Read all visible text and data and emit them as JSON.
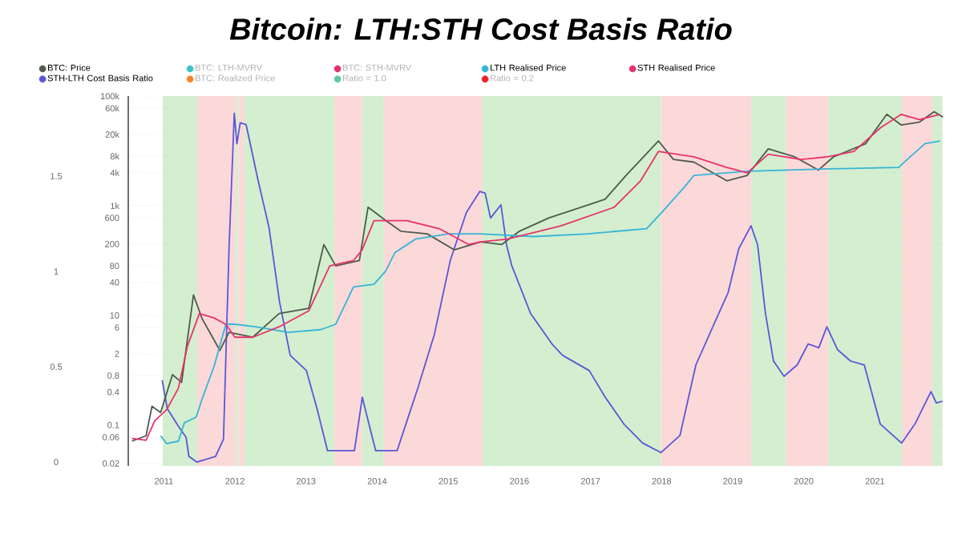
{
  "chart_data": {
    "type": "line",
    "title": "Bitcoin: LTH:STH Cost Basis Ratio",
    "xlim": [
      "2010-07-01",
      "2021-12-31"
    ],
    "xticks": [
      "2011",
      "2012",
      "2013",
      "2014",
      "2015",
      "2016",
      "2017",
      "2018",
      "2019",
      "2020",
      "2021"
    ],
    "ylim": [
      -0.02,
      1.92
    ],
    "yticks": [
      0,
      0.5,
      1,
      1.5
    ],
    "y2lim": [
      0.018,
      100000
    ],
    "y2ticks": [
      0.02,
      0.06,
      0.1,
      0.4,
      0.8,
      2,
      6,
      10,
      40,
      80,
      200,
      600,
      {
        "value": 1000,
        "label": "1k"
      },
      {
        "value": 4000,
        "label": "4k"
      },
      {
        "value": 8000,
        "label": "8k"
      },
      {
        "value": 20000,
        "label": "20k"
      },
      {
        "value": 60000,
        "label": "60k"
      },
      {
        "value": 100000,
        "label": "100k"
      }
    ],
    "log": "y2",
    "grid": "y",
    "legend": "top",
    "bands": [
      {
        "axis": "x",
        "from": "2010-12-25",
        "to": "2011-06-20",
        "color": "#d3efcf"
      },
      {
        "axis": "x",
        "from": "2011-06-20",
        "to": "2012-01-04",
        "color": "#fcd9d9"
      },
      {
        "axis": "x",
        "from": "2012-01-04",
        "to": "2012-01-18",
        "color": "#d3efcf"
      },
      {
        "axis": "x",
        "from": "2012-01-18",
        "to": "2012-02-20",
        "color": "#fcd9d9"
      },
      {
        "axis": "x",
        "from": "2012-02-20",
        "to": "2013-05-25",
        "color": "#d3efcf"
      },
      {
        "axis": "x",
        "from": "2013-05-25",
        "to": "2013-10-15",
        "color": "#fcd9d9"
      },
      {
        "axis": "x",
        "from": "2013-10-15",
        "to": "2014-02-05",
        "color": "#d3efcf"
      },
      {
        "axis": "x",
        "from": "2014-02-05",
        "to": "2015-06-25",
        "color": "#fcd9d9"
      },
      {
        "axis": "x",
        "from": "2015-06-25",
        "to": "2017-12-28",
        "color": "#d3efcf"
      },
      {
        "axis": "x",
        "from": "2017-12-28",
        "to": "2019-04-05",
        "color": "#fcd9d9"
      },
      {
        "axis": "x",
        "from": "2019-04-05",
        "to": "2019-10-01",
        "color": "#d3efcf"
      },
      {
        "axis": "x",
        "from": "2019-10-01",
        "to": "2020-05-05",
        "color": "#fcd9d9"
      },
      {
        "axis": "x",
        "from": "2020-05-05",
        "to": "2021-05-18",
        "color": "#d3efcf"
      },
      {
        "axis": "x",
        "from": "2021-05-18",
        "to": "2021-10-22",
        "color": "#fcd9d9"
      },
      {
        "axis": "x",
        "from": "2021-10-22",
        "to": "2021-12-13",
        "color": "#d3efcf"
      }
    ],
    "series": [
      {
        "name": "BTC: Price",
        "color": "#4f5a4c",
        "axis": "y2",
        "x": [
          "2010-07-20",
          "2010-10-01",
          "2010-11-01",
          "2010-12-15",
          "2011-02-15",
          "2011-04-01",
          "2011-06-01",
          "2011-07-15",
          "2011-10-15",
          "2011-12-01",
          "2012-04-01",
          "2012-08-15",
          "2013-01-15",
          "2013-04-01",
          "2013-06-01",
          "2013-10-01",
          "2013-11-15",
          "2014-02-15",
          "2014-05-01",
          "2014-09-15",
          "2015-02-01",
          "2015-06-15",
          "2015-10-01",
          "2016-01-01",
          "2016-06-01",
          "2017-03-15",
          "2017-07-01",
          "2017-12-15",
          "2018-03-01",
          "2018-06-15",
          "2018-12-01",
          "2019-03-15",
          "2019-07-01",
          "2019-11-15",
          "2020-03-15",
          "2020-06-01",
          "2020-11-15",
          "2021-03-01",
          "2021-05-15",
          "2021-08-15",
          "2021-11-01",
          "2021-12-15"
        ],
        "values": [
          0.051,
          0.064,
          0.22,
          0.17,
          0.83,
          0.6,
          23.7,
          8.7,
          2.3,
          4.9,
          4.0,
          10.8,
          13.5,
          196,
          80,
          100,
          940,
          535,
          343,
          307,
          157,
          220,
          196,
          343,
          600,
          1310,
          3580,
          15200,
          6980,
          6240,
          2850,
          3580,
          10900,
          7780,
          4470,
          7780,
          13600,
          46500,
          29600,
          33300,
          52100,
          41500
        ]
      },
      {
        "name": "BTC: LTH-MVRV",
        "color": "#3cc3c8",
        "axis": "y2"
      },
      {
        "name": "BTC: STH-MVRV",
        "color": "#e0306a",
        "axis": "y2"
      },
      {
        "name": "LTH Realised Price",
        "color": "#36b4d8",
        "axis": "y2",
        "x": [
          "2010-12-15",
          "2011-01-15",
          "2011-03-15",
          "2011-04-15",
          "2011-06-15",
          "2011-07-15",
          "2011-09-15",
          "2011-11-15",
          "2012-01-01",
          "2012-04-15",
          "2012-10-01",
          "2013-03-15",
          "2013-06-01",
          "2013-09-01",
          "2013-12-15",
          "2014-02-15",
          "2014-04-01",
          "2014-07-15",
          "2015-01-01",
          "2015-06-15",
          "2016-03-15",
          "2016-12-15",
          "2017-10-15",
          "2018-01-01",
          "2018-05-01",
          "2018-06-15",
          "2019-03-15",
          "2020-04-01",
          "2021-05-01",
          "2021-06-15",
          "2021-09-15",
          "2021-12-01"
        ],
        "values": [
          0.064,
          0.046,
          0.051,
          0.11,
          0.14,
          0.3,
          1.16,
          6.9,
          6.9,
          6.2,
          4.9,
          5.5,
          6.9,
          33,
          37,
          65,
          140,
          246,
          307,
          307,
          274,
          307,
          383,
          748,
          2290,
          3580,
          4270,
          4680,
          5000,
          6980,
          13600,
          15200
        ]
      },
      {
        "name": "STH Realised Price",
        "color": "#e8336b",
        "axis": "y2",
        "x": [
          "2010-07-20",
          "2010-10-01",
          "2010-11-15",
          "2011-01-15",
          "2011-03-15",
          "2011-05-01",
          "2011-07-01",
          "2011-09-15",
          "2011-11-15",
          "2012-01-01",
          "2012-04-01",
          "2012-08-15",
          "2013-01-15",
          "2013-05-01",
          "2013-09-01",
          "2013-10-15",
          "2013-12-15",
          "2014-06-01",
          "2014-11-15",
          "2015-04-15",
          "2015-06-15",
          "2015-11-01",
          "2016-08-01",
          "2017-05-01",
          "2017-09-15",
          "2017-12-15",
          "2018-06-15",
          "2018-12-01",
          "2019-03-15",
          "2019-07-01",
          "2019-12-15",
          "2020-05-01",
          "2020-09-15",
          "2021-02-01",
          "2021-05-15",
          "2021-08-15",
          "2021-12-01"
        ],
        "values": [
          0.057,
          0.053,
          0.12,
          0.19,
          0.47,
          2.8,
          10.8,
          9.0,
          6.9,
          4.0,
          4.0,
          6.2,
          12.1,
          80,
          100,
          157,
          535,
          535,
          383,
          196,
          220,
          246,
          430,
          940,
          2850,
          9770,
          7780,
          5000,
          3980,
          8710,
          6980,
          7780,
          9770,
          26700,
          46500,
          37200,
          46500
        ]
      },
      {
        "name": "STH-LTH Cost Basis Ratio",
        "color": "#5b55d6",
        "x": [
          "2010-12-23",
          "2011-01-19",
          "2011-03-14",
          "2011-04-24",
          "2011-05-08",
          "2011-06-19",
          "2011-09-23",
          "2011-11-03",
          "2011-12-01",
          "2011-12-28",
          "2012-01-11",
          "2012-01-28",
          "2012-02-28",
          "2012-04-28",
          "2012-06-24",
          "2012-08-17",
          "2012-10-11",
          "2013-01-03",
          "2013-02-27",
          "2013-04-20",
          "2013-09-06",
          "2013-10-16",
          "2013-11-27",
          "2013-12-24",
          "2014-04-12",
          "2014-07-28",
          "2014-10-21",
          "2015-01-12",
          "2015-04-03",
          "2015-06-11",
          "2015-07-08",
          "2015-08-05",
          "2015-09-28",
          "2015-10-26",
          "2015-11-23",
          "2016-02-28",
          "2016-06-16",
          "2016-08-10",
          "2016-12-25",
          "2017-03-16",
          "2017-06-20",
          "2017-09-25",
          "2017-12-28",
          "2018-04-04",
          "2018-06-25",
          "2018-09-16",
          "2018-12-08",
          "2019-02-02",
          "2019-04-04",
          "2019-05-07",
          "2019-06-17",
          "2019-07-28",
          "2019-09-21",
          "2019-11-28",
          "2020-01-23",
          "2020-03-17",
          "2020-04-28",
          "2020-06-22",
          "2020-08-28",
          "2020-11-07",
          "2021-01-28",
          "2021-05-16",
          "2021-07-24",
          "2021-10-15",
          "2021-11-12",
          "2021-12-14"
        ],
        "values": [
          0.43,
          0.28,
          0.19,
          0.13,
          0.03,
          0.0,
          0.03,
          0.12,
          1.12,
          1.83,
          1.67,
          1.78,
          1.77,
          1.48,
          1.23,
          0.84,
          0.56,
          0.48,
          0.28,
          0.06,
          0.06,
          0.34,
          0.17,
          0.06,
          0.06,
          0.39,
          0.67,
          1.06,
          1.31,
          1.42,
          1.41,
          1.28,
          1.35,
          1.14,
          1.03,
          0.78,
          0.62,
          0.56,
          0.48,
          0.34,
          0.2,
          0.1,
          0.05,
          0.14,
          0.51,
          0.7,
          0.89,
          1.12,
          1.24,
          1.14,
          0.78,
          0.53,
          0.45,
          0.51,
          0.62,
          0.6,
          0.71,
          0.59,
          0.53,
          0.51,
          0.2,
          0.1,
          0.2,
          0.37,
          0.31,
          0.32
        ]
      },
      {
        "name": "BTC: Realized Price",
        "color": "#f5872a",
        "axis": "y2"
      },
      {
        "name": "Ratio = 1.0",
        "color": "#5cc8a8"
      },
      {
        "name": "Ratio = 0.2",
        "color": "#f0202a"
      }
    ]
  }
}
